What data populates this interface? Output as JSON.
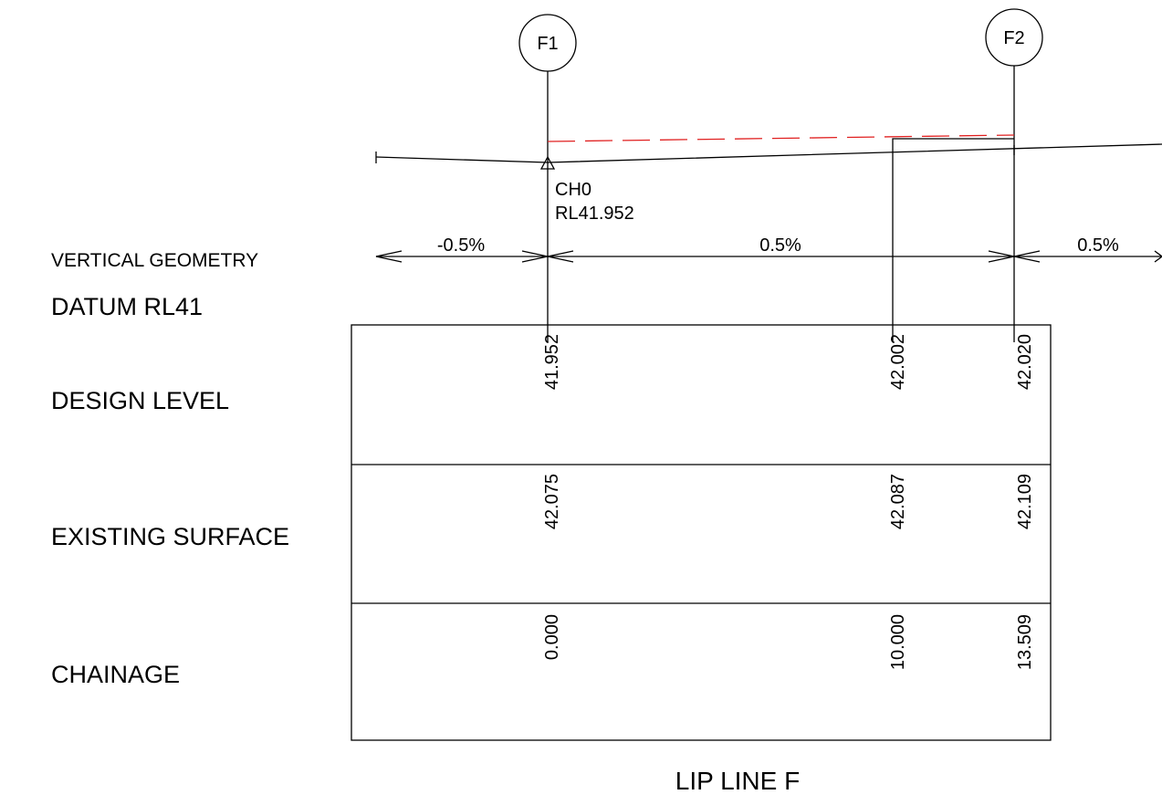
{
  "drawing": {
    "title": "LIP LINE F",
    "labels": {
      "vertical_geometry": "VERTICAL GEOMETRY",
      "datum": "DATUM RL41",
      "design_level": "DESIGN LEVEL",
      "existing_surface": "EXISTING SURFACE",
      "chainage": "CHAINAGE"
    },
    "markers": [
      {
        "id": "F1",
        "label": "F1"
      },
      {
        "id": "F2",
        "label": "F2"
      }
    ],
    "start_point": {
      "chainage_label": "CH0",
      "rl_label": "RL41.952"
    },
    "grades": [
      {
        "label": "-0.5%"
      },
      {
        "label": "0.5%"
      },
      {
        "label": "0.5%"
      }
    ],
    "stations": [
      {
        "chainage": "0.000",
        "design_level": "41.952",
        "existing_surface": "42.075"
      },
      {
        "chainage": "10.000",
        "design_level": "42.002",
        "existing_surface": "42.087"
      },
      {
        "chainage": "13.509",
        "design_level": "42.020",
        "existing_surface": "42.109"
      }
    ],
    "colors": {
      "line": "#000000",
      "design_dashed": "#e02020",
      "background": "#ffffff"
    }
  }
}
